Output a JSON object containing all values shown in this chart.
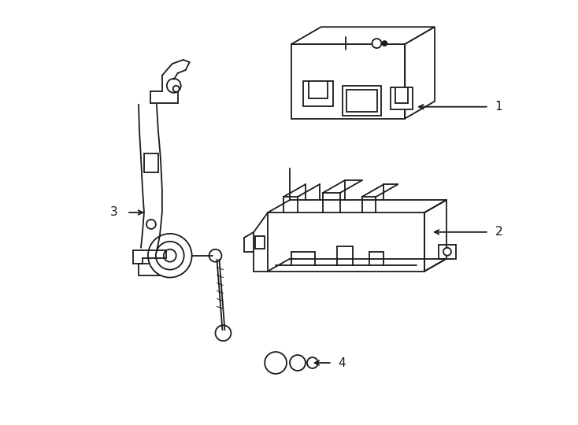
{
  "background_color": "#ffffff",
  "line_color": "#1a1a1a",
  "line_width": 1.3,
  "fig_width": 7.34,
  "fig_height": 5.4,
  "dpi": 100
}
